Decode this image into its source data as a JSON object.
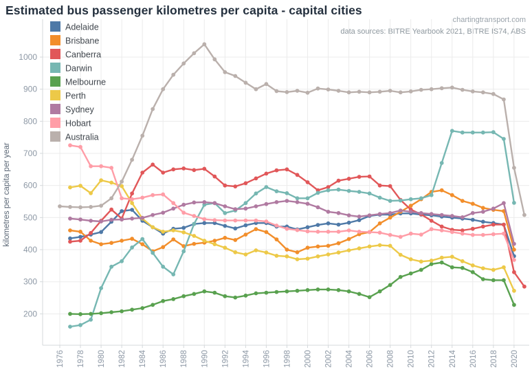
{
  "header": {
    "title": "Estimated bus passenger kilometres per capita - capital cities",
    "watermark": "chartingtransport.com",
    "data_sources": "data sources: BITRE Yearbook 2021, BITRE IS74, ABS"
  },
  "chart_data": {
    "type": "line",
    "title": "Estimated bus passenger kilometres per capita - capital cities",
    "xlabel": "",
    "ylabel": "kilometres per capita per year",
    "x_start": 1976,
    "x": [
      1976,
      1977,
      1978,
      1979,
      1980,
      1981,
      1982,
      1983,
      1984,
      1985,
      1986,
      1987,
      1988,
      1989,
      1990,
      1991,
      1992,
      1993,
      1994,
      1995,
      1996,
      1997,
      1998,
      1999,
      2000,
      2001,
      2002,
      2003,
      2004,
      2005,
      2006,
      2007,
      2008,
      2009,
      2010,
      2011,
      2012,
      2013,
      2014,
      2015,
      2016,
      2017,
      2018,
      2019,
      2020,
      2021
    ],
    "xticks": [
      1976,
      1978,
      1980,
      1982,
      1984,
      1986,
      1988,
      1990,
      1992,
      1994,
      1996,
      1998,
      2000,
      2002,
      2004,
      2006,
      2008,
      2010,
      2012,
      2014,
      2016,
      2018,
      2020
    ],
    "yticks": [
      200,
      300,
      400,
      500,
      600,
      700,
      800,
      900,
      1000
    ],
    "ylim": [
      140,
      1080
    ],
    "grid": true,
    "legend_position": "top-left",
    "marker": "circle",
    "series": [
      {
        "name": "Adelaide",
        "color": "#4e79a7",
        "values": [
          null,
          435,
          440,
          447,
          455,
          487,
          520,
          524,
          490,
          470,
          450,
          465,
          468,
          480,
          483,
          483,
          474,
          466,
          476,
          483,
          483,
          472,
          472,
          463,
          470,
          477,
          482,
          478,
          484,
          492,
          505,
          509,
          509,
          513,
          513,
          509,
          507,
          503,
          500,
          497,
          493,
          487,
          483,
          478,
          380,
          null
        ]
      },
      {
        "name": "Brisbane",
        "color": "#f28e2b",
        "values": [
          null,
          460,
          456,
          428,
          417,
          421,
          428,
          434,
          417,
          395,
          408,
          432,
          411,
          418,
          422,
          428,
          437,
          430,
          447,
          464,
          455,
          432,
          400,
          392,
          406,
          410,
          412,
          420,
          433,
          448,
          455,
          482,
          500,
          518,
          537,
          557,
          580,
          585,
          570,
          552,
          543,
          530,
          524,
          520,
          400,
          null
        ]
      },
      {
        "name": "Canberra",
        "color": "#e15759",
        "values": [
          null,
          425,
          428,
          452,
          490,
          525,
          497,
          575,
          640,
          665,
          640,
          650,
          653,
          648,
          652,
          628,
          600,
          597,
          607,
          622,
          637,
          647,
          650,
          633,
          610,
          585,
          595,
          615,
          621,
          627,
          628,
          600,
          598,
          555,
          525,
          510,
          490,
          472,
          462,
          460,
          465,
          472,
          478,
          478,
          330,
          285
        ]
      },
      {
        "name": "Darwin",
        "color": "#76b7b2",
        "values": [
          null,
          160,
          165,
          182,
          280,
          347,
          364,
          407,
          433,
          390,
          347,
          323,
          395,
          480,
          540,
          545,
          514,
          522,
          545,
          575,
          595,
          582,
          576,
          560,
          560,
          577,
          585,
          587,
          583,
          580,
          575,
          562,
          552,
          553,
          557,
          560,
          570,
          670,
          770,
          765,
          765,
          765,
          766,
          745,
          546,
          null
        ]
      },
      {
        "name": "Melbourne",
        "color": "#59a14f",
        "values": [
          null,
          200,
          199,
          200,
          202,
          205,
          208,
          213,
          218,
          228,
          240,
          246,
          255,
          262,
          270,
          266,
          255,
          251,
          257,
          264,
          266,
          268,
          270,
          272,
          274,
          276,
          276,
          274,
          270,
          262,
          252,
          270,
          290,
          315,
          326,
          337,
          355,
          360,
          345,
          343,
          330,
          308,
          305,
          305,
          228,
          null
        ]
      },
      {
        "name": "Perth",
        "color": "#edc948",
        "values": [
          null,
          594,
          599,
          576,
          616,
          609,
          598,
          545,
          497,
          470,
          456,
          460,
          454,
          443,
          428,
          417,
          406,
          392,
          385,
          398,
          391,
          381,
          379,
          370,
          372,
          379,
          385,
          391,
          398,
          404,
          410,
          414,
          412,
          384,
          370,
          363,
          366,
          375,
          378,
          364,
          351,
          342,
          337,
          345,
          272,
          null
        ]
      },
      {
        "name": "Sydney",
        "color": "#b07aa1",
        "values": [
          null,
          497,
          494,
          490,
          488,
          493,
          494,
          497,
          499,
          508,
          515,
          528,
          540,
          547,
          548,
          545,
          535,
          526,
          528,
          535,
          542,
          548,
          552,
          548,
          543,
          532,
          518,
          514,
          507,
          503,
          507,
          511,
          514,
          522,
          518,
          514,
          511,
          508,
          505,
          501,
          514,
          518,
          528,
          545,
          418,
          null
        ]
      },
      {
        "name": "Hobart",
        "color": "#ff9da7",
        "values": [
          null,
          725,
          720,
          660,
          660,
          655,
          560,
          557,
          562,
          570,
          572,
          545,
          515,
          505,
          495,
          492,
          491,
          491,
          491,
          491,
          488,
          475,
          465,
          461,
          457,
          456,
          456,
          456,
          460,
          456,
          455,
          453,
          446,
          440,
          450,
          447,
          464,
          460,
          455,
          450,
          446,
          446,
          448,
          450,
          368,
          null
        ]
      },
      {
        "name": "Australia",
        "color": "#bab0ac",
        "values": [
          535,
          533,
          532,
          533,
          537,
          560,
          612,
          680,
          755,
          838,
          900,
          945,
          980,
          1012,
          1040,
          993,
          953,
          941,
          920,
          900,
          916,
          894,
          891,
          895,
          889,
          902,
          899,
          895,
          890,
          892,
          890,
          892,
          895,
          890,
          893,
          898,
          900,
          903,
          905,
          898,
          893,
          890,
          885,
          868,
          655,
          508
        ]
      }
    ]
  },
  "style_colors": {
    "grid": "#ebebeb",
    "axis": "#d4d8db",
    "tick_label": "#8d98a5",
    "y_axis_title": "#5a6675",
    "legend_text": "#41474e"
  }
}
